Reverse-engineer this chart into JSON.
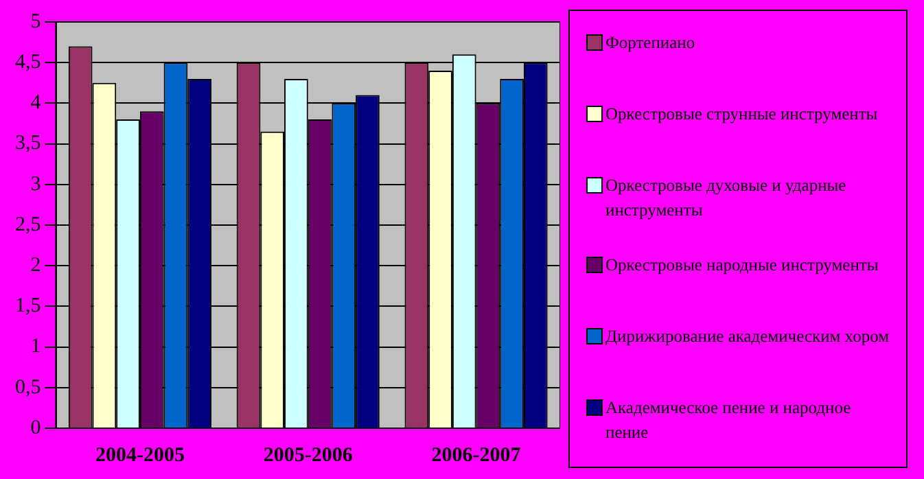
{
  "chart_data": {
    "type": "bar",
    "categories": [
      "2004-2005",
      "2005-2006",
      "2006-2007"
    ],
    "series": [
      {
        "name": "Фортепиано",
        "color": "#993366",
        "values": [
          4.7,
          4.5,
          4.5
        ]
      },
      {
        "name": "Оркестровые струнные инструменты",
        "color": "#ffffcc",
        "values": [
          4.25,
          3.65,
          4.4
        ]
      },
      {
        "name": "Оркестровые духовые и ударные инструменты",
        "color": "#ccffff",
        "values": [
          3.8,
          4.3,
          4.6
        ]
      },
      {
        "name": "Оркестровые народные инструменты",
        "color": "#660066",
        "values": [
          3.9,
          3.8,
          4.0
        ]
      },
      {
        "name": "Дирижирование академическим хором",
        "color": "#0066cc",
        "values": [
          4.5,
          4.0,
          4.3
        ]
      },
      {
        "name": "Академическое пение и народное пение",
        "color": "#000080",
        "values": [
          4.3,
          4.1,
          4.5
        ]
      }
    ],
    "ylim": [
      0,
      5
    ],
    "yticks": [
      0,
      {
        "value": 0.5,
        "label": "0,5"
      },
      1,
      {
        "value": 1.5,
        "label": "1,5"
      },
      2,
      {
        "value": 2.5,
        "label": "2,5"
      },
      3,
      {
        "value": 3.5,
        "label": "3,5"
      },
      4,
      {
        "value": 4.5,
        "label": "4,5"
      },
      5
    ],
    "grid": "y",
    "legend": "right"
  }
}
